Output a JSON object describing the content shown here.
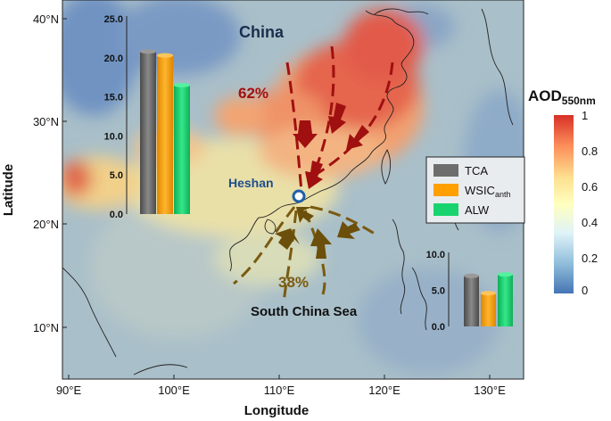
{
  "map": {
    "axes": {
      "xlabel": "Longitude",
      "ylabel": "Latitude",
      "x_ticks": [
        "90°E",
        "100°E",
        "110°E",
        "120°E",
        "130°E"
      ],
      "y_ticks": [
        "10°N",
        "20°N",
        "30°N",
        "40°N"
      ]
    },
    "labels": {
      "china": "China",
      "sea": "South China Sea",
      "site": "Heshan",
      "north_pct": "62%",
      "south_pct": "38%"
    },
    "colorbar": {
      "title": "AOD",
      "title_sub": "550nm",
      "ticks": [
        "1",
        "0.8",
        "0.6",
        "0.4",
        "0.2",
        "0"
      ],
      "colors": [
        "#d73027",
        "#fc8d59",
        "#fee090",
        "#ffffbf",
        "#e0f3f8",
        "#91bfdb",
        "#4575b4"
      ]
    },
    "legend": {
      "items": [
        {
          "label": "TCA",
          "color": "#6d6d6d"
        },
        {
          "label": "WSIC",
          "sub": "anth",
          "color": "#ff9f00"
        },
        {
          "label": "ALW",
          "color": "#19d46e"
        }
      ]
    },
    "colors": {
      "north_arrows": "#a01010",
      "south_arrows": "#7a5a10",
      "site_marker": "#1f5fa8",
      "site_label": "#1f4e8c"
    }
  },
  "chart_data": [
    {
      "type": "bar",
      "name": "North inset",
      "categories": [
        "TCA",
        "WSIC_anth",
        "ALW"
      ],
      "values": [
        20.8,
        20.3,
        16.5
      ],
      "yticks": [
        "0.0",
        "5.0",
        "10.0",
        "15.0",
        "20.0",
        "25.0"
      ],
      "ylim": [
        0,
        25
      ]
    },
    {
      "type": "bar",
      "name": "South inset",
      "categories": [
        "TCA",
        "WSIC_anth",
        "ALW"
      ],
      "values": [
        7.0,
        4.6,
        7.2
      ],
      "yticks": [
        "0.0",
        "5.0",
        "10.0"
      ],
      "ylim": [
        0,
        10
      ]
    }
  ]
}
